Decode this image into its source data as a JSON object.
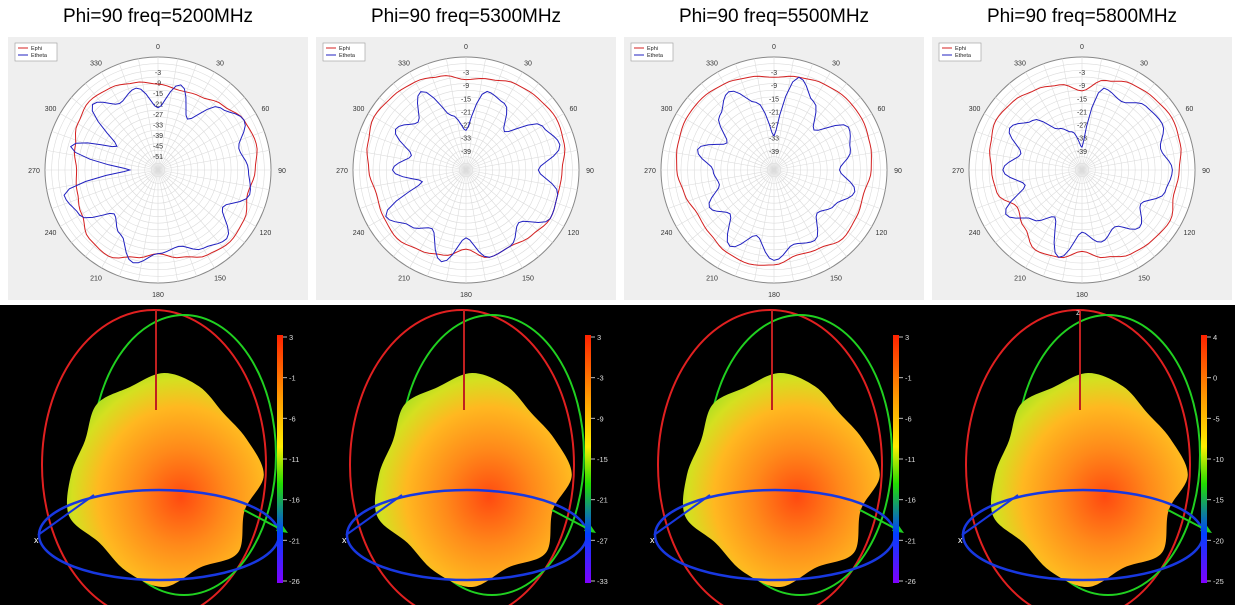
{
  "chart_data": [
    {
      "type": "polar",
      "title": "Phi=90 freq=5200MHz",
      "legend": [
        "Ephi",
        "Etheta"
      ],
      "legend_position": "top-left",
      "angle_ticks": [
        "0",
        "30",
        "60",
        "90",
        "120",
        "150",
        "180",
        "210",
        "240",
        "270",
        "300",
        "330"
      ],
      "radial_ticks": [
        "-3",
        "-9",
        "-15",
        "-21",
        "-27",
        "-33",
        "-39",
        "-45",
        "-51"
      ],
      "series": [
        {
          "name": "Ephi",
          "color": "#d42020",
          "r": [
            0.76,
            0.73,
            0.75,
            0.81,
            0.88,
            0.9,
            0.86,
            0.82,
            0.88,
            0.9,
            0.87,
            0.8,
            0.74,
            0.8,
            0.88,
            0.86,
            0.78,
            0.74,
            0.72,
            0.76,
            0.82,
            0.86,
            0.84,
            0.8
          ]
        },
        {
          "name": "Etheta",
          "color": "#2020c0",
          "r": [
            0.55,
            0.78,
            0.52,
            0.78,
            0.88,
            0.74,
            0.8,
            0.84,
            0.66,
            0.86,
            0.8,
            0.7,
            0.74,
            0.85,
            0.66,
            0.55,
            0.8,
            0.86,
            0.25,
            0.8,
            0.42,
            0.82,
            0.68,
            0.75
          ]
        }
      ]
    },
    {
      "type": "polar",
      "title": "Phi=90 freq=5300MHz",
      "legend": [
        "Ephi",
        "Etheta"
      ],
      "legend_position": "top-left",
      "angle_ticks": [
        "0",
        "30",
        "60",
        "90",
        "120",
        "150",
        "180",
        "210",
        "240",
        "270",
        "300",
        "330"
      ],
      "radial_ticks": [
        "-3",
        "-9",
        "-15",
        "-21",
        "-27",
        "-33",
        "-39"
      ],
      "series": [
        {
          "name": "Ephi",
          "color": "#d42020",
          "r": [
            0.8,
            0.83,
            0.88,
            0.9,
            0.92,
            0.9,
            0.85,
            0.84,
            0.86,
            0.82,
            0.78,
            0.8,
            0.7,
            0.78,
            0.82,
            0.86,
            0.84,
            0.82,
            0.86,
            0.9,
            0.94,
            0.92,
            0.9,
            0.86
          ]
        },
        {
          "name": "Etheta",
          "color": "#2020c0",
          "r": [
            0.35,
            0.72,
            0.68,
            0.48,
            0.78,
            0.86,
            0.64,
            0.84,
            0.86,
            0.66,
            0.78,
            0.8,
            0.6,
            0.84,
            0.6,
            0.7,
            0.82,
            0.4,
            0.65,
            0.5,
            0.72,
            0.6,
            0.8,
            0.5
          ]
        }
      ]
    },
    {
      "type": "polar",
      "title": "Phi=90 freq=5500MHz",
      "legend": [
        "Ephi",
        "Etheta"
      ],
      "legend_position": "top-left",
      "angle_ticks": [
        "0",
        "30",
        "60",
        "90",
        "120",
        "150",
        "180",
        "210",
        "240",
        "270",
        "300",
        "330"
      ],
      "radial_ticks": [
        "-3",
        "-9",
        "-15",
        "-21",
        "-27",
        "-33",
        "-39"
      ],
      "series": [
        {
          "name": "Ephi",
          "color": "#d42020",
          "r": [
            0.82,
            0.85,
            0.88,
            0.9,
            0.9,
            0.88,
            0.86,
            0.82,
            0.84,
            0.86,
            0.8,
            0.78,
            0.84,
            0.86,
            0.84,
            0.8,
            0.78,
            0.82,
            0.86,
            0.88,
            0.9,
            0.9,
            0.88,
            0.85
          ]
        },
        {
          "name": "Etheta",
          "color": "#2020c0",
          "r": [
            0.3,
            0.85,
            0.7,
            0.5,
            0.76,
            0.7,
            0.58,
            0.74,
            0.62,
            0.54,
            0.72,
            0.68,
            0.8,
            0.6,
            0.78,
            0.55,
            0.66,
            0.5,
            0.54,
            0.7,
            0.48,
            0.68,
            0.8,
            0.62
          ]
        }
      ]
    },
    {
      "type": "polar",
      "title": "Phi=90 freq=5800MHz",
      "legend": [
        "Ephi",
        "Etheta"
      ],
      "legend_position": "top-left",
      "angle_ticks": [
        "0",
        "30",
        "60",
        "90",
        "120",
        "150",
        "180",
        "210",
        "240",
        "270",
        "300",
        "330"
      ],
      "radial_ticks": [
        "-3",
        "-9",
        "-15",
        "-21",
        "-27",
        "-33",
        "-39"
      ],
      "series": [
        {
          "name": "Ephi",
          "color": "#d42020",
          "r": [
            0.7,
            0.82,
            0.88,
            0.9,
            0.92,
            0.9,
            0.86,
            0.84,
            0.9,
            0.88,
            0.86,
            0.8,
            0.72,
            0.8,
            0.82,
            0.72,
            0.66,
            0.78,
            0.8,
            0.84,
            0.88,
            0.86,
            0.82,
            0.78
          ]
        },
        {
          "name": "Etheta",
          "color": "#2020c0",
          "r": [
            0.2,
            0.75,
            0.7,
            0.8,
            0.82,
            0.72,
            0.8,
            0.76,
            0.6,
            0.72,
            0.58,
            0.66,
            0.55,
            0.8,
            0.48,
            0.62,
            0.78,
            0.52,
            0.7,
            0.56,
            0.74,
            0.62,
            0.42,
            0.35
          ]
        }
      ]
    }
  ],
  "patterns_3d": [
    {
      "scale_ticks": [
        "3",
        "-1",
        "-6",
        "-11",
        "-16",
        "-21",
        "-26"
      ],
      "axis_label": "x"
    },
    {
      "scale_ticks": [
        "3",
        "-3",
        "-9",
        "-15",
        "-21",
        "-27",
        "-33"
      ],
      "axis_label": "x"
    },
    {
      "scale_ticks": [
        "3",
        "-1",
        "-6",
        "-11",
        "-16",
        "-21",
        "-26"
      ],
      "axis_label": "x"
    },
    {
      "scale_ticks": [
        "4",
        "0",
        "-5",
        "-10",
        "-15",
        "-20",
        "-25"
      ],
      "axis_label": "x",
      "top_label": "z"
    }
  ]
}
